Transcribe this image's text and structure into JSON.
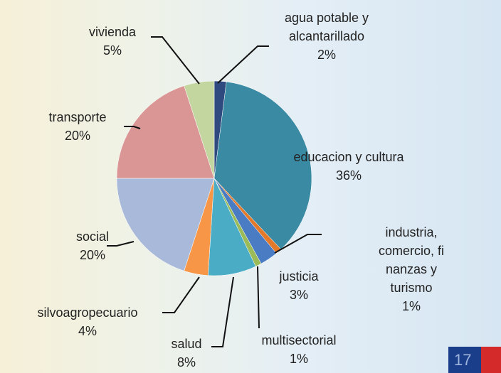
{
  "chart_data": {
    "type": "pie",
    "categories": [
      "agua potable y\nalcantarillado",
      "educacion y cultura",
      "industria, comercio, fi\nnanzas y turismo",
      "justicia",
      "multisectorial",
      "salud",
      "silvoagropecuario",
      "social",
      "transporte",
      "vivienda"
    ],
    "values": [
      2,
      36,
      1,
      3,
      1,
      8,
      4,
      20,
      20,
      5
    ],
    "value_labels": [
      "2%",
      "36%",
      "1%",
      "3%",
      "1%",
      "8%",
      "4%",
      "20%",
      "20%",
      "5%"
    ],
    "colors": [
      "#2e4a7f",
      "#3a8aa3",
      "#e3792b",
      "#4a7cc4",
      "#9bbb59",
      "#4bacc6",
      "#f79646",
      "#a9b9d9",
      "#d99694",
      "#c4d6a0"
    ]
  },
  "page_number": "17"
}
